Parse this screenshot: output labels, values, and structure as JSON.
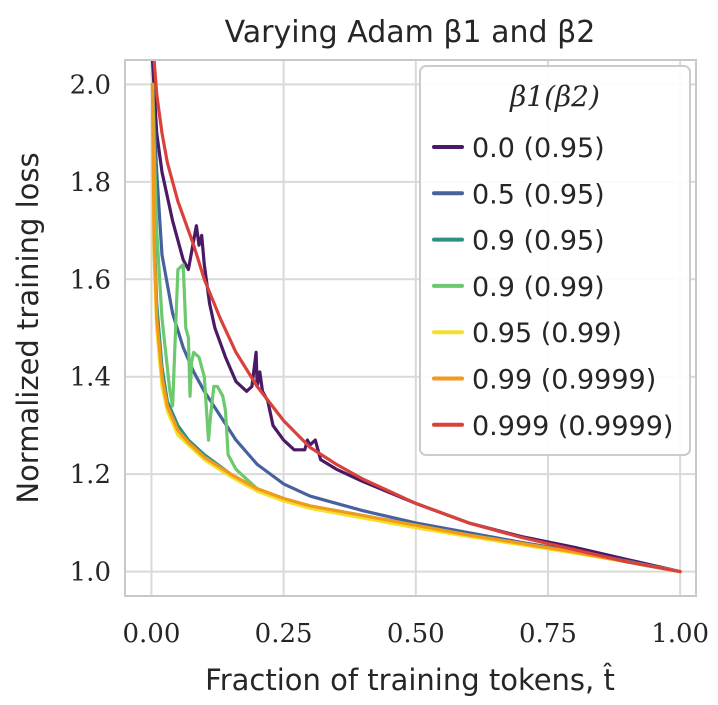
{
  "chart_data": {
    "type": "line",
    "title": "Varying Adam β1 and β2",
    "xlabel": "Fraction of training tokens, t̂",
    "ylabel": "Normalized training loss",
    "xlim": [
      -0.05,
      1.03
    ],
    "ylim": [
      0.95,
      2.05
    ],
    "xticks": [
      0.0,
      0.25,
      0.5,
      0.75,
      1.0
    ],
    "xtick_labels": [
      "0.00",
      "0.25",
      "0.50",
      "0.75",
      "1.00"
    ],
    "yticks": [
      1.0,
      1.2,
      1.4,
      1.6,
      1.8,
      2.0
    ],
    "ytick_labels": [
      "1.0",
      "1.2",
      "1.4",
      "1.6",
      "1.8",
      "2.0"
    ],
    "grid": true,
    "legend": {
      "title": "β1(β2)",
      "position": "top-right"
    },
    "series": [
      {
        "name": "0.0 (0.95)",
        "color": "#4a1a66",
        "x": [
          0.002,
          0.01,
          0.02,
          0.04,
          0.06,
          0.07,
          0.08,
          0.085,
          0.09,
          0.095,
          0.1,
          0.11,
          0.12,
          0.14,
          0.16,
          0.18,
          0.19,
          0.198,
          0.2,
          0.205,
          0.21,
          0.22,
          0.23,
          0.25,
          0.27,
          0.29,
          0.295,
          0.3,
          0.31,
          0.32,
          0.35,
          0.4,
          0.5,
          0.6,
          0.7,
          0.8,
          0.9,
          1.0
        ],
        "y": [
          2.05,
          1.9,
          1.82,
          1.72,
          1.64,
          1.62,
          1.68,
          1.71,
          1.67,
          1.69,
          1.63,
          1.55,
          1.5,
          1.44,
          1.39,
          1.37,
          1.38,
          1.45,
          1.38,
          1.41,
          1.37,
          1.35,
          1.3,
          1.27,
          1.25,
          1.25,
          1.27,
          1.26,
          1.27,
          1.23,
          1.21,
          1.185,
          1.14,
          1.1,
          1.072,
          1.05,
          1.025,
          1.0
        ]
      },
      {
        "name": "0.5 (0.95)",
        "color": "#45629e",
        "x": [
          0.002,
          0.01,
          0.02,
          0.04,
          0.06,
          0.08,
          0.1,
          0.13,
          0.16,
          0.2,
          0.25,
          0.3,
          0.35,
          0.4,
          0.5,
          0.6,
          0.7,
          0.8,
          0.9,
          1.0
        ],
        "y": [
          2.0,
          1.82,
          1.65,
          1.53,
          1.46,
          1.41,
          1.37,
          1.32,
          1.27,
          1.22,
          1.18,
          1.155,
          1.14,
          1.125,
          1.1,
          1.08,
          1.06,
          1.042,
          1.022,
          1.0
        ]
      },
      {
        "name": "0.9 (0.95)",
        "color": "#2e8f86",
        "x": [
          0.002,
          0.005,
          0.01,
          0.02,
          0.03,
          0.05,
          0.07,
          0.1,
          0.15,
          0.2,
          0.25,
          0.3,
          0.4,
          0.5,
          0.6,
          0.7,
          0.8,
          0.9,
          1.0
        ],
        "y": [
          2.0,
          1.7,
          1.55,
          1.42,
          1.35,
          1.3,
          1.27,
          1.24,
          1.2,
          1.17,
          1.15,
          1.135,
          1.115,
          1.095,
          1.075,
          1.058,
          1.04,
          1.02,
          1.0
        ]
      },
      {
        "name": "0.9 (0.99)",
        "color": "#6cc96e",
        "x": [
          0.002,
          0.01,
          0.02,
          0.035,
          0.04,
          0.05,
          0.06,
          0.065,
          0.07,
          0.073,
          0.076,
          0.08,
          0.09,
          0.1,
          0.108,
          0.112,
          0.118,
          0.125,
          0.135,
          0.14,
          0.145,
          0.16,
          0.2,
          0.25,
          0.3,
          0.4,
          0.5,
          0.6,
          0.7,
          0.8,
          0.9,
          1.0
        ],
        "y": [
          2.0,
          1.7,
          1.52,
          1.37,
          1.34,
          1.62,
          1.63,
          1.5,
          1.48,
          1.36,
          1.43,
          1.45,
          1.44,
          1.4,
          1.27,
          1.32,
          1.38,
          1.38,
          1.36,
          1.33,
          1.24,
          1.21,
          1.17,
          1.15,
          1.135,
          1.115,
          1.095,
          1.075,
          1.058,
          1.04,
          1.02,
          1.0
        ]
      },
      {
        "name": "0.95 (0.99)",
        "color": "#f2e12a",
        "x": [
          0.002,
          0.005,
          0.01,
          0.02,
          0.03,
          0.05,
          0.07,
          0.1,
          0.15,
          0.2,
          0.25,
          0.3,
          0.4,
          0.5,
          0.6,
          0.7,
          0.8,
          0.9,
          1.0
        ],
        "y": [
          2.0,
          1.65,
          1.5,
          1.38,
          1.33,
          1.28,
          1.26,
          1.23,
          1.195,
          1.165,
          1.145,
          1.13,
          1.11,
          1.09,
          1.072,
          1.055,
          1.038,
          1.02,
          1.0
        ]
      },
      {
        "name": "0.99 (0.9999)",
        "color": "#f39a1b",
        "x": [
          0.002,
          0.005,
          0.01,
          0.02,
          0.03,
          0.05,
          0.07,
          0.1,
          0.15,
          0.2,
          0.25,
          0.3,
          0.4,
          0.5,
          0.6,
          0.7,
          0.8,
          0.9,
          1.0
        ],
        "y": [
          2.0,
          1.68,
          1.52,
          1.4,
          1.34,
          1.29,
          1.265,
          1.235,
          1.2,
          1.17,
          1.15,
          1.135,
          1.115,
          1.095,
          1.075,
          1.058,
          1.04,
          1.02,
          1.0
        ]
      },
      {
        "name": "0.999 (0.9999)",
        "color": "#d9423a",
        "x": [
          0.005,
          0.01,
          0.02,
          0.03,
          0.05,
          0.08,
          0.1,
          0.13,
          0.16,
          0.2,
          0.25,
          0.3,
          0.35,
          0.4,
          0.5,
          0.6,
          0.7,
          0.8,
          0.9,
          1.0
        ],
        "y": [
          2.05,
          1.98,
          1.9,
          1.84,
          1.76,
          1.67,
          1.6,
          1.52,
          1.45,
          1.38,
          1.31,
          1.255,
          1.22,
          1.19,
          1.14,
          1.1,
          1.07,
          1.045,
          1.02,
          1.0
        ]
      }
    ]
  }
}
